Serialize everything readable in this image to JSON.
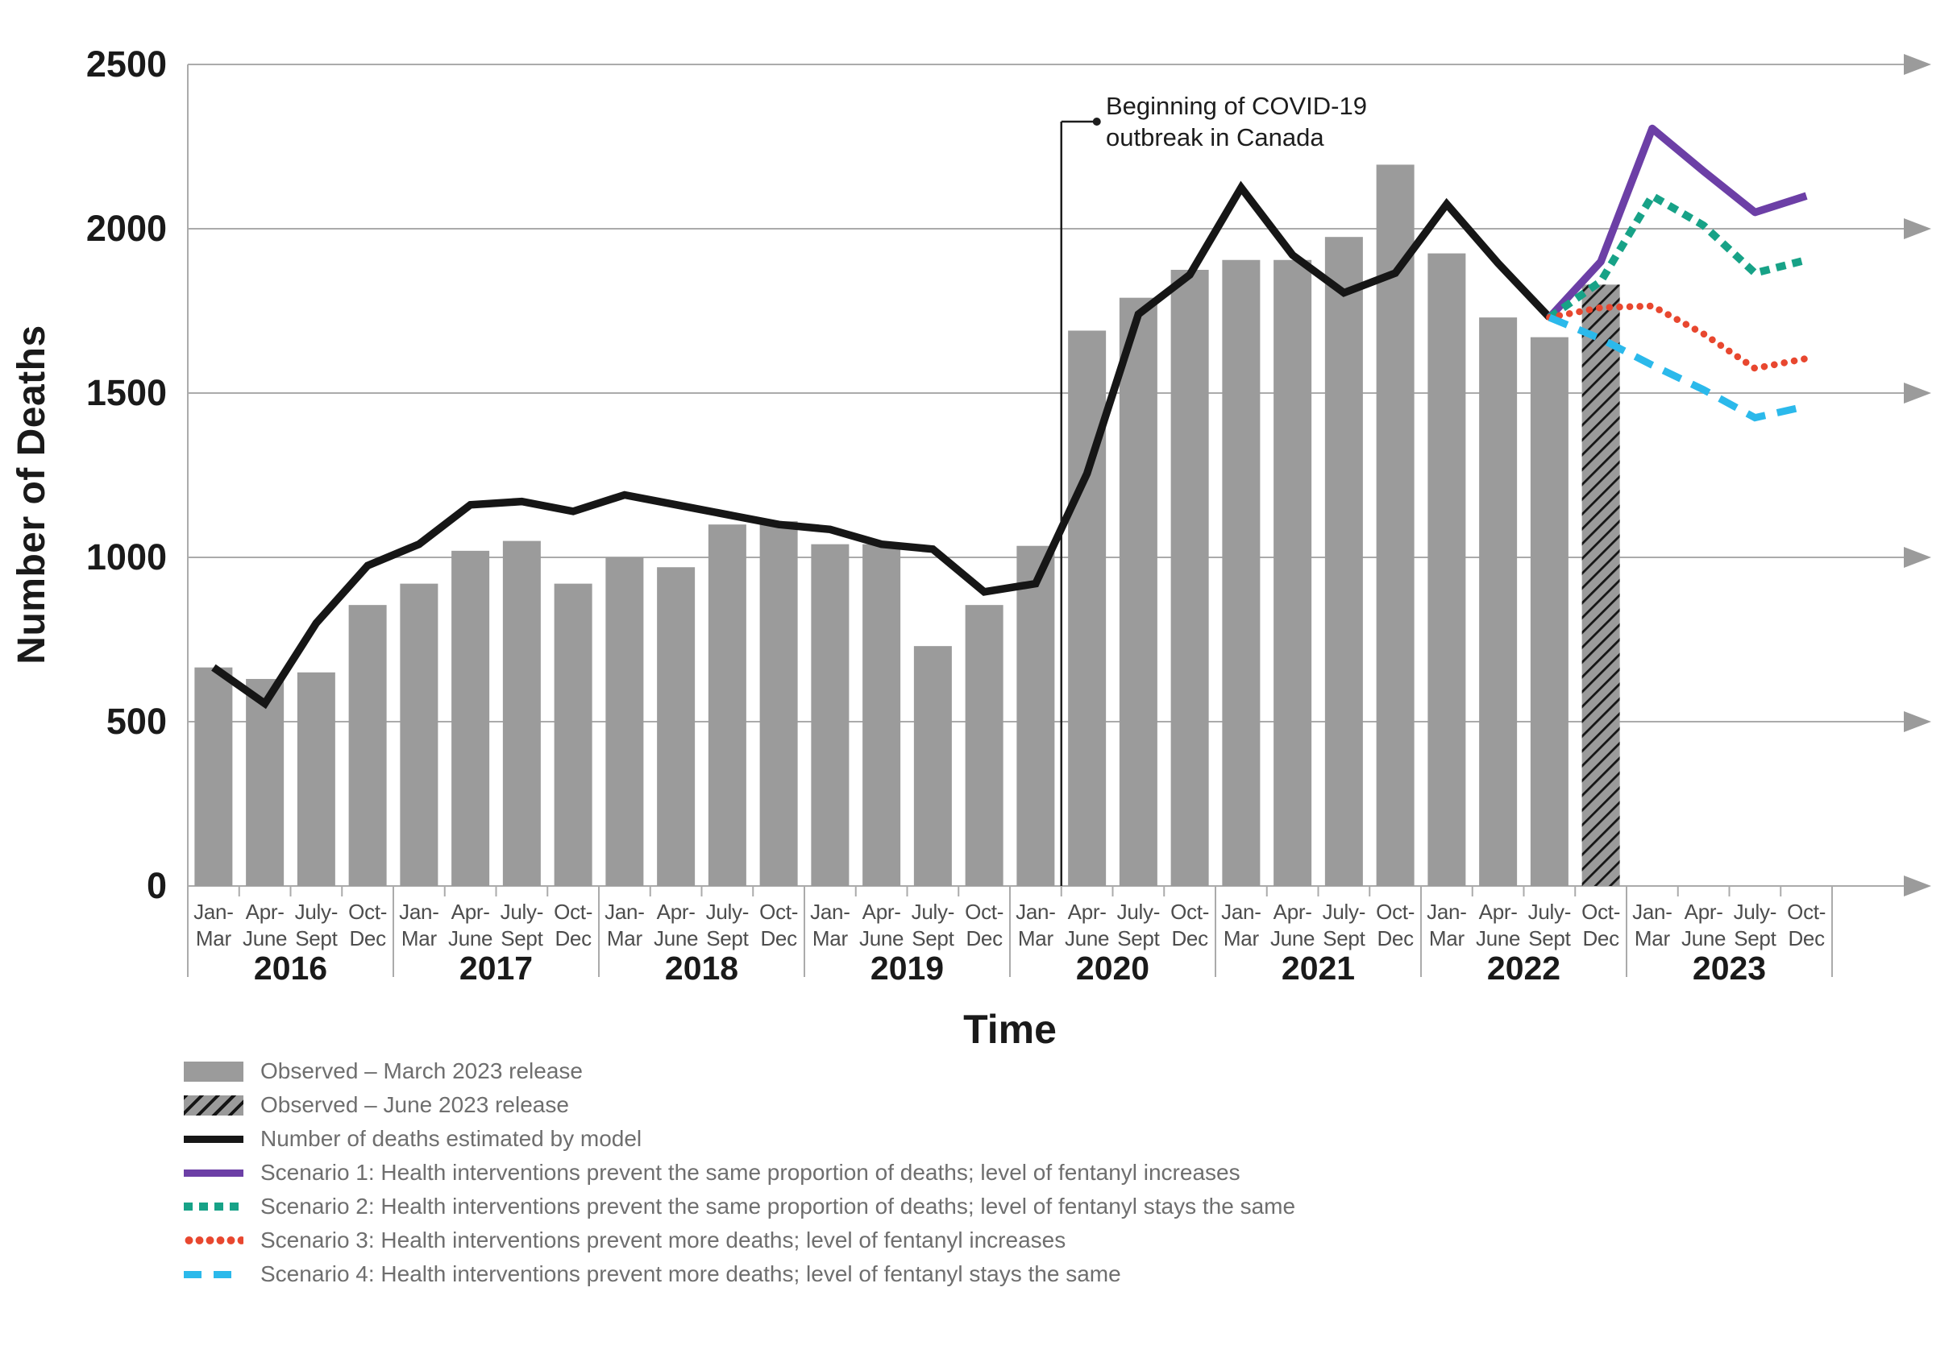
{
  "y_axis": {
    "title": "Number of Deaths",
    "tick_labels": [
      "2500",
      "2000",
      "1500",
      "1000",
      "500",
      "0"
    ]
  },
  "x_axis": {
    "title": "Time",
    "years": [
      "2016",
      "2017",
      "2018",
      "2019",
      "2020",
      "2021",
      "2022",
      "2023"
    ],
    "quarter_top": [
      "Jan-",
      "Apr-",
      "July-",
      "Oct-"
    ],
    "quarter_bottom": [
      "Mar",
      "June",
      "Sept",
      "Dec"
    ]
  },
  "annotation": {
    "line1": "Beginning of COVID-19",
    "line2": "outbreak in Canada"
  },
  "colors": {
    "bar": "#9b9b9b",
    "hatch_stripe": "#151515",
    "model": "#161616",
    "scenario1": "#6c3fa6",
    "scenario2": "#17a287",
    "scenario3": "#e8472f",
    "scenario4": "#2bb9eb",
    "grid": "#ababab",
    "arrow": "#9b9b9b",
    "quarter_label": "#4d4d4d",
    "legend_text": "#6e6e6e"
  },
  "legend": {
    "items": [
      {
        "swatch": "rect-solid",
        "label": "Observed – March 2023 release"
      },
      {
        "swatch": "rect-hatch",
        "label": "Observed – June 2023 release"
      },
      {
        "swatch": "line-black",
        "label": "Number of deaths estimated by model"
      },
      {
        "swatch": "line-purple",
        "label": "Scenario 1: Health interventions prevent the same proportion of deaths; level of fentanyl increases"
      },
      {
        "swatch": "sqdot-green",
        "label": "Scenario 2: Health interventions prevent the same proportion of deaths; level of fentanyl stays the same"
      },
      {
        "swatch": "dot-red",
        "label": "Scenario 3: Health interventions prevent more deaths; level of fentanyl increases"
      },
      {
        "swatch": "dash-cyan",
        "label": "Scenario 4: Health interventions prevent more deaths; level of fentanyl stays the same"
      }
    ]
  },
  "chart_data": {
    "type": "bar",
    "title": "",
    "xlabel": "Time",
    "ylabel": "Number of Deaths",
    "ylim": [
      0,
      2500
    ],
    "y_ticks": [
      0,
      500,
      1000,
      1500,
      2000,
      2500
    ],
    "grid": "horizontal",
    "legend_position": "bottom-left",
    "x_slots": 32,
    "quarters": [
      "2016 Jan-Mar",
      "2016 Apr-June",
      "2016 July-Sept",
      "2016 Oct-Dec",
      "2017 Jan-Mar",
      "2017 Apr-June",
      "2017 July-Sept",
      "2017 Oct-Dec",
      "2018 Jan-Mar",
      "2018 Apr-June",
      "2018 July-Sept",
      "2018 Oct-Dec",
      "2019 Jan-Mar",
      "2019 Apr-June",
      "2019 July-Sept",
      "2019 Oct-Dec",
      "2020 Jan-Mar",
      "2020 Apr-June",
      "2020 July-Sept",
      "2020 Oct-Dec",
      "2021 Jan-Mar",
      "2021 Apr-June",
      "2021 July-Sept",
      "2021 Oct-Dec",
      "2022 Jan-Mar",
      "2022 Apr-June",
      "2022 July-Sept",
      "2022 Oct-Dec",
      "2023 Jan-Mar",
      "2023 Apr-June",
      "2023 July-Sept",
      "2023 Oct-Dec"
    ],
    "covid_marker_boundary_index": 17,
    "series": [
      {
        "name": "Observed – March 2023 release",
        "type": "bar",
        "start_index": 0,
        "values": [
          665,
          630,
          650,
          855,
          920,
          1020,
          1050,
          920,
          1000,
          970,
          1100,
          1110,
          1040,
          1040,
          730,
          855,
          1035,
          1690,
          1790,
          1875,
          1905,
          1905,
          1975,
          2195,
          1925,
          1730,
          1670
        ]
      },
      {
        "name": "Observed – June 2023 release",
        "type": "bar-hatched",
        "start_index": 27,
        "values": [
          1830
        ]
      },
      {
        "name": "Number of deaths estimated by model",
        "type": "line",
        "style": "solid-black",
        "start_index": 0,
        "values": [
          665,
          555,
          800,
          975,
          1040,
          1160,
          1170,
          1140,
          1190,
          1160,
          1130,
          1100,
          1085,
          1040,
          1025,
          895,
          920,
          1255,
          1740,
          1860,
          2125,
          1920,
          1805,
          1865,
          2075,
          1895,
          1730
        ]
      },
      {
        "name": "Scenario 1: Health interventions prevent the same proportion of deaths; level of fentanyl increases",
        "type": "line",
        "style": "solid-purple",
        "start_index": 26,
        "values": [
          1730,
          1900,
          2305,
          2175,
          2050,
          2100
        ]
      },
      {
        "name": "Scenario 2: Health interventions prevent the same proportion of deaths; level of fentanyl stays the same",
        "type": "line",
        "style": "square-dot-green",
        "start_index": 26,
        "values": [
          1730,
          1840,
          2100,
          2010,
          1865,
          1905
        ]
      },
      {
        "name": "Scenario 3: Health interventions prevent more deaths; level of fentanyl increases",
        "type": "line",
        "style": "round-dot-red",
        "start_index": 26,
        "values": [
          1730,
          1760,
          1765,
          1680,
          1575,
          1605
        ]
      },
      {
        "name": "Scenario 4: Health interventions prevent more deaths; level of fentanyl stays the same",
        "type": "line",
        "style": "dash-cyan",
        "start_index": 26,
        "values": [
          1730,
          1665,
          1585,
          1510,
          1425,
          1460
        ]
      }
    ]
  }
}
